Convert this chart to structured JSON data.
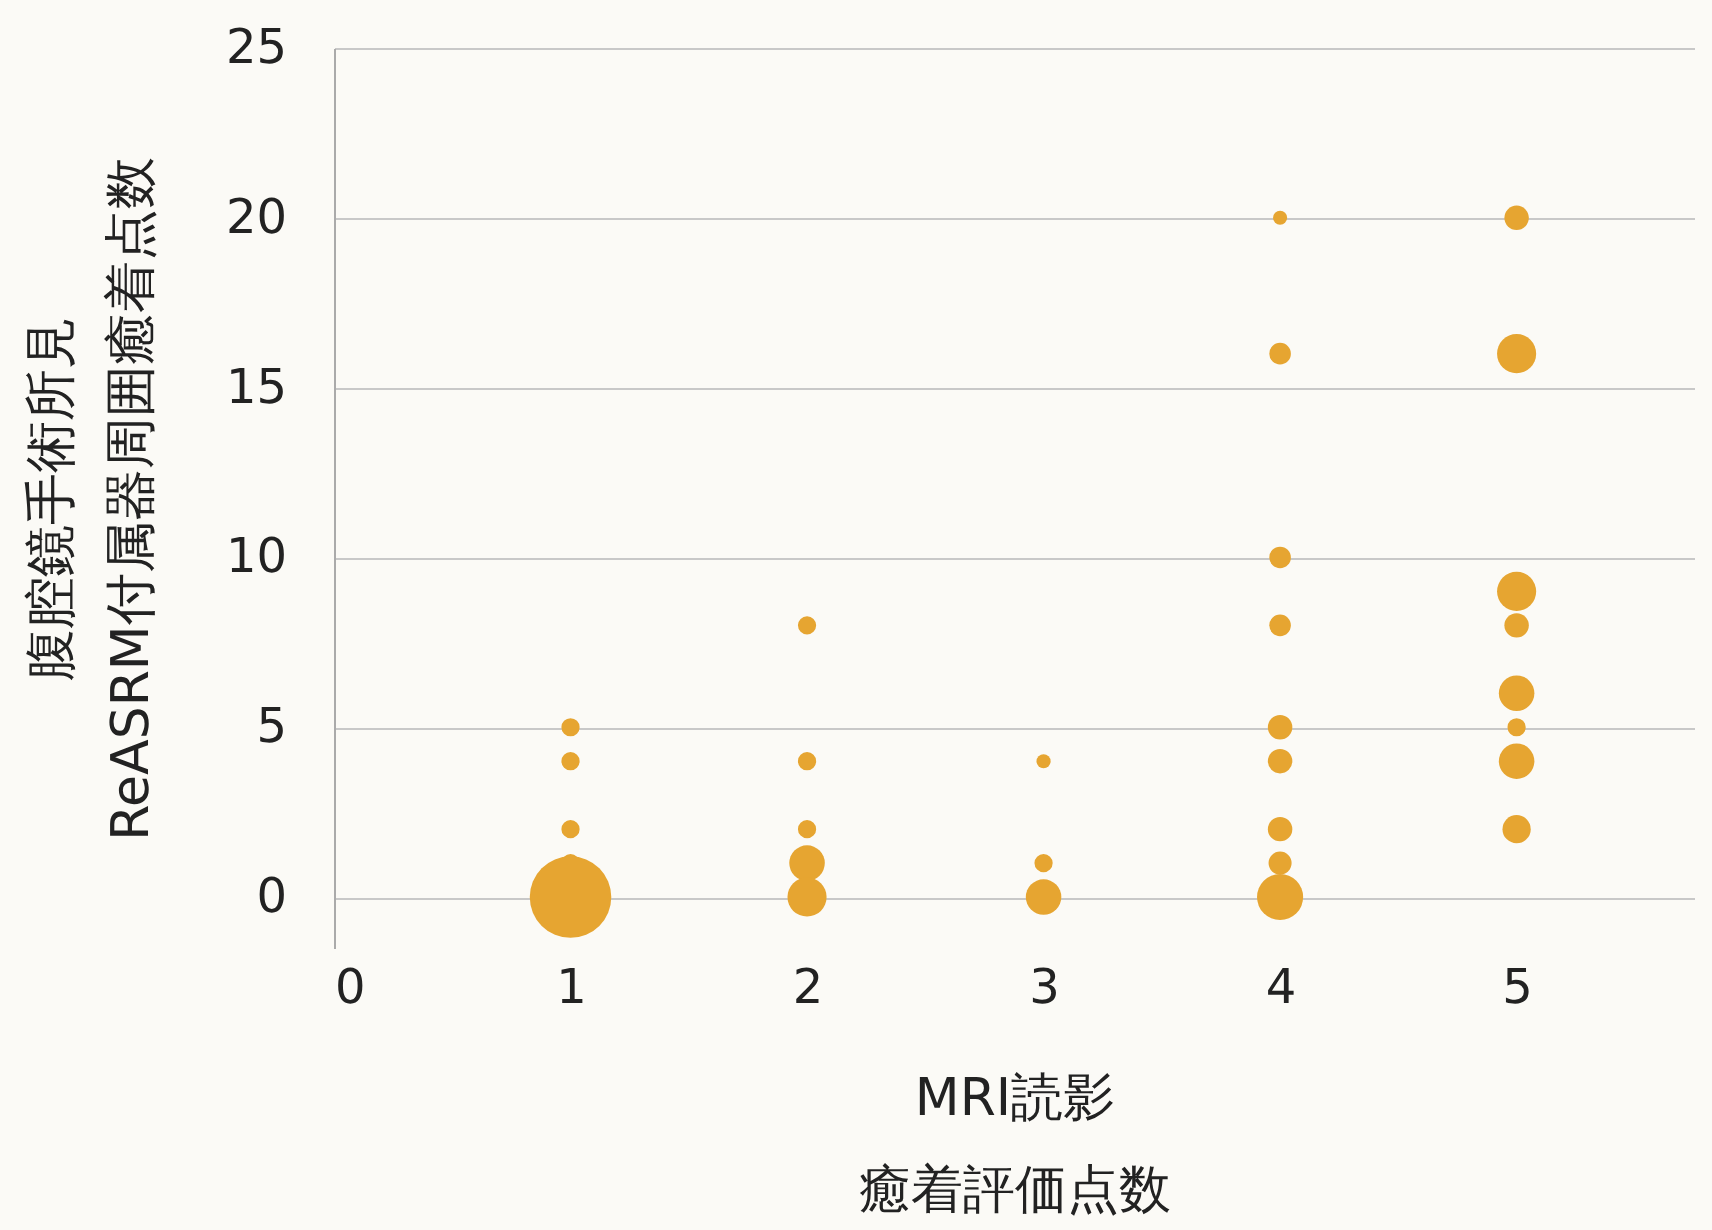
{
  "chart_data": {
    "type": "bubble",
    "xlabel": "MRI読影癒着評価点数",
    "ylabel": "腹腔鏡手術所見\nReASRM付属器周囲癒着点数",
    "xlim": [
      0,
      5.75
    ],
    "xticks": [
      0,
      1,
      2,
      3,
      4,
      5
    ],
    "ylim": [
      -1.5,
      25
    ],
    "yticks": [
      0,
      5,
      10,
      15,
      20,
      25
    ],
    "grid": "y",
    "series": [
      {
        "color": "#e6a531",
        "x": [
          1,
          1,
          1,
          1,
          1,
          2,
          2,
          2,
          2,
          2,
          3,
          3,
          3,
          4,
          4,
          4,
          4,
          4,
          4,
          4,
          4,
          4,
          5,
          5,
          5,
          5,
          5,
          5,
          5,
          5
        ],
        "values": [
          5,
          4,
          2,
          1,
          0,
          8,
          4,
          2,
          1,
          0,
          4,
          1,
          0,
          20,
          16,
          10,
          8,
          5,
          4,
          2,
          1,
          0,
          20,
          16,
          9,
          8,
          6,
          5,
          4,
          2
        ],
        "sizes": [
          0.05,
          0.05,
          0.05,
          0.05,
          1,
          0.05,
          0.05,
          0.05,
          0.19,
          0.23,
          0.03,
          0.05,
          0.19,
          0.03,
          0.07,
          0.07,
          0.07,
          0.09,
          0.09,
          0.09,
          0.08,
          0.32,
          0.09,
          0.23,
          0.23,
          0.09,
          0.19,
          0.05,
          0.19,
          0.12
        ]
      }
    ]
  }
}
